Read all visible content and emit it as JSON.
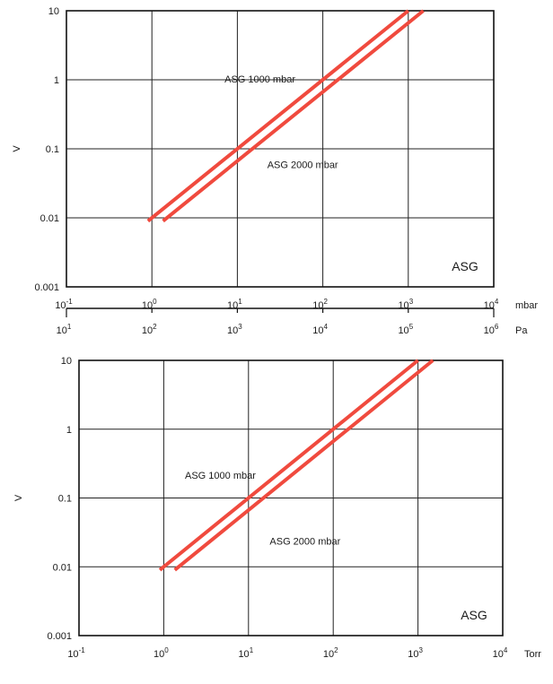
{
  "colors": {
    "line": "#f04a3e",
    "grid": "#222222",
    "frame": "#111111",
    "text": "#1a1a1a"
  },
  "chart_data": [
    {
      "type": "line",
      "xscale": "log",
      "yscale": "log",
      "xlim": [
        0.1,
        10000
      ],
      "ylim": [
        0.001,
        10
      ],
      "ylabel": "V",
      "xunit": "mbar",
      "x_ticks": [
        {
          "mant": "10",
          "exp": "-1"
        },
        {
          "mant": "10",
          "exp": "0"
        },
        {
          "mant": "10",
          "exp": "1"
        },
        {
          "mant": "10",
          "exp": "2"
        },
        {
          "mant": "10",
          "exp": "3"
        },
        {
          "mant": "10",
          "exp": "4"
        }
      ],
      "y_ticks": [
        "10",
        "1",
        "0.1",
        "0.01",
        "0.001"
      ],
      "secondary_axis": {
        "unit": "Pa",
        "ticks": [
          {
            "mant": "10",
            "exp": "1"
          },
          {
            "mant": "10",
            "exp": "2"
          },
          {
            "mant": "10",
            "exp": "3"
          },
          {
            "mant": "10",
            "exp": "4"
          },
          {
            "mant": "10",
            "exp": "5"
          },
          {
            "mant": "10",
            "exp": "6"
          }
        ]
      },
      "corner_label": "ASG",
      "series": [
        {
          "name": "ASG 1000 mbar",
          "x": [
            0.9,
            1000
          ],
          "y": [
            0.009,
            10
          ]
        },
        {
          "name": "ASG 2000 mbar",
          "x": [
            1.35,
            1500
          ],
          "y": [
            0.009,
            10
          ]
        }
      ]
    },
    {
      "type": "line",
      "xscale": "log",
      "yscale": "log",
      "xlim": [
        0.1,
        10000
      ],
      "ylim": [
        0.001,
        10
      ],
      "ylabel": "V",
      "xunit": "Torr",
      "x_ticks": [
        {
          "mant": "10",
          "exp": "-1"
        },
        {
          "mant": "10",
          "exp": "0"
        },
        {
          "mant": "10",
          "exp": "1"
        },
        {
          "mant": "10",
          "exp": "2"
        },
        {
          "mant": "10",
          "exp": "3"
        },
        {
          "mant": "10",
          "exp": "4"
        }
      ],
      "y_ticks": [
        "10",
        "1",
        "0.1",
        "0.01",
        "0.001"
      ],
      "corner_label": "ASG",
      "series": [
        {
          "name": "ASG 1000 mbar",
          "x": [
            0.9,
            1000
          ],
          "y": [
            0.009,
            10
          ]
        },
        {
          "name": "ASG 2000 mbar",
          "x": [
            1.35,
            1500
          ],
          "y": [
            0.009,
            10
          ]
        }
      ]
    }
  ]
}
